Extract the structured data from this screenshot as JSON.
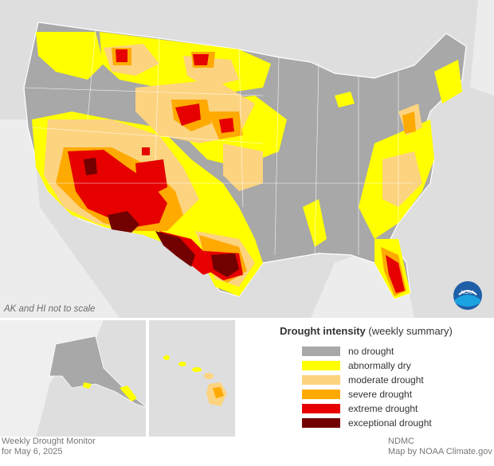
{
  "map": {
    "scale_note": "AK and HI not to scale",
    "logo_text": "NOAA"
  },
  "legend": {
    "title_bold": "Drought intensity",
    "title_rest": " (weekly summary)",
    "items": [
      {
        "label": "no drought",
        "color": "#a8a8a8"
      },
      {
        "label": "abnormally dry",
        "color": "#ffff00"
      },
      {
        "label": "moderate drought",
        "color": "#fcd37f"
      },
      {
        "label": "severe drought",
        "color": "#ffaa00"
      },
      {
        "label": "extreme drought",
        "color": "#e60000"
      },
      {
        "label": "exceptional drought",
        "color": "#730000"
      }
    ]
  },
  "footer": {
    "line1": "Weekly Drought Monitor",
    "line2": "for May 6, 2025",
    "credit1": "NDMC",
    "credit2": "Map by NOAA Climate.gov"
  },
  "colors": {
    "background_land": "#dedede",
    "water": "#f2f2f2",
    "no_drought": "#a8a8a8",
    "abnormally_dry": "#ffff00",
    "moderate": "#fcd37f",
    "severe": "#ffaa00",
    "extreme": "#e60000",
    "exceptional": "#730000"
  }
}
